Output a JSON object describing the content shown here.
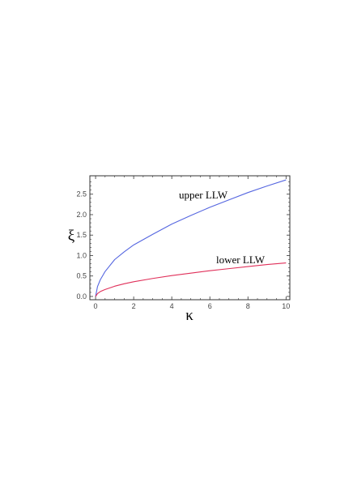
{
  "chart_data": {
    "type": "line",
    "xlabel": "κ",
    "ylabel": "ξ",
    "xlim": [
      -0.3,
      10.2
    ],
    "ylim": [
      -0.08,
      2.95
    ],
    "x_ticks": [
      0,
      2,
      4,
      6,
      8,
      10
    ],
    "y_ticks": [
      0.0,
      0.5,
      1.0,
      1.5,
      2.0,
      2.5
    ],
    "x_tick_labels": [
      "0",
      "2",
      "4",
      "6",
      "8",
      "10"
    ],
    "y_tick_labels": [
      "0.0",
      "0.5",
      "1.0",
      "1.5",
      "2.0",
      "2.5"
    ],
    "grid": false,
    "legend": "none",
    "series": [
      {
        "color": "#5566e0",
        "x": [
          0,
          0.1,
          0.25,
          0.5,
          1,
          1.5,
          2,
          3,
          4,
          5,
          6,
          7,
          8,
          9,
          10
        ],
        "y": [
          0,
          0.24,
          0.41,
          0.61,
          0.9,
          1.09,
          1.26,
          1.52,
          1.77,
          1.98,
          2.18,
          2.36,
          2.54,
          2.7,
          2.85
        ]
      },
      {
        "color": "#e0305a",
        "x": [
          0,
          0.1,
          0.25,
          0.5,
          1,
          1.5,
          2,
          3,
          4,
          5,
          6,
          7,
          8,
          9,
          10
        ],
        "y": [
          0,
          0.07,
          0.12,
          0.17,
          0.25,
          0.31,
          0.36,
          0.44,
          0.51,
          0.57,
          0.63,
          0.68,
          0.73,
          0.78,
          0.82
        ]
      }
    ],
    "annotations": [
      {
        "text": "upper LLW",
        "x": 4.5,
        "y": 2.35
      },
      {
        "text": "lower LLW",
        "x": 8.5,
        "y": 0.8
      }
    ]
  }
}
